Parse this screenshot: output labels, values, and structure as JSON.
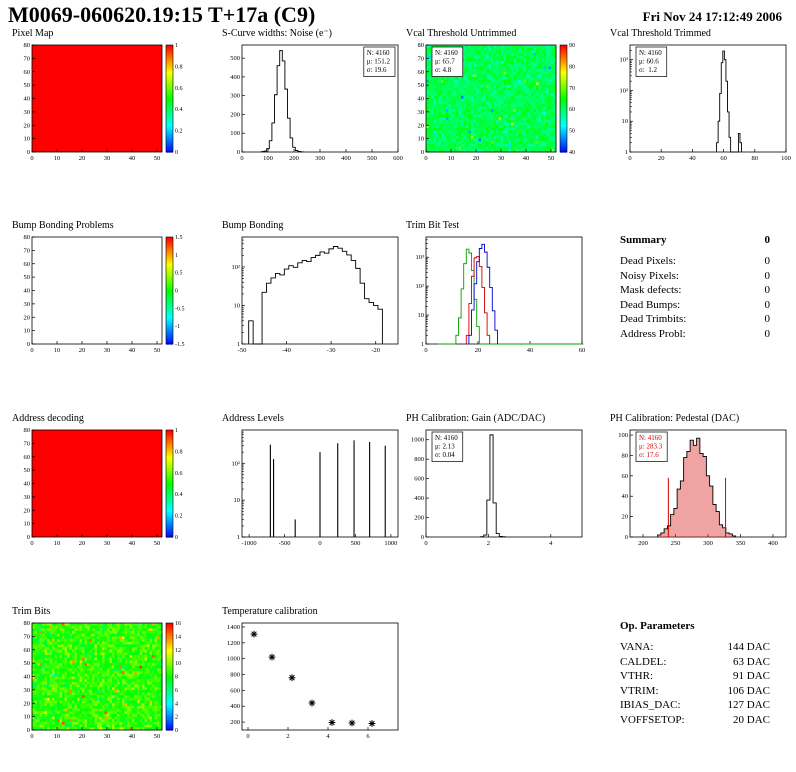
{
  "header": {
    "title": "M0069-060620.19:15 T+17a (C9)",
    "timestamp": "Fri Nov 24 17:12:49 2006"
  },
  "summary": {
    "title": "Summary",
    "value": "0",
    "rows": [
      {
        "label": "Dead Pixels:",
        "value": "0"
      },
      {
        "label": "Noisy Pixels:",
        "value": "0"
      },
      {
        "label": "Mask defects:",
        "value": "0"
      },
      {
        "label": "Dead Bumps:",
        "value": "0"
      },
      {
        "label": "Dead Trimbits:",
        "value": "0"
      },
      {
        "label": "Address Probl:",
        "value": "0"
      }
    ]
  },
  "op_parameters": {
    "title": "Op. Parameters",
    "rows": [
      {
        "label": "VANA:",
        "value": "144 DAC"
      },
      {
        "label": "CALDEL:",
        "value": "63 DAC"
      },
      {
        "label": "VTHR:",
        "value": "91 DAC"
      },
      {
        "label": "VTRIM:",
        "value": "106 DAC"
      },
      {
        "label": "IBIAS_DAC:",
        "value": "127 DAC"
      },
      {
        "label": "VOFFSETOP:",
        "value": "20 DAC"
      }
    ]
  },
  "chart_data": [
    {
      "id": "pixel-map",
      "title": "Pixel Map",
      "type": "heatmap",
      "fill": "solid",
      "color": "#ff0000",
      "x": {
        "min": 0,
        "max": 52,
        "ticks": [
          0,
          10,
          20,
          30,
          40,
          50
        ]
      },
      "y": {
        "min": 0,
        "max": 80,
        "ticks": [
          0,
          10,
          20,
          30,
          40,
          50,
          60,
          70,
          80
        ]
      },
      "colorbar": {
        "labels": [
          "1",
          "0.8",
          "0.6",
          "0.4",
          "0.2",
          "0"
        ]
      }
    },
    {
      "id": "scurve",
      "title": "S-Curve widths: Noise (e⁻)",
      "type": "hist",
      "binw": 10,
      "color": "#000000",
      "x": {
        "min": 0,
        "max": 600,
        "ticks": [
          0,
          100,
          200,
          300,
          400,
          500,
          600
        ]
      },
      "y": {
        "min": 0,
        "max": 570,
        "ticks": [
          0,
          100,
          200,
          300,
          400,
          500
        ]
      },
      "stats": {
        "pos": "tr",
        "lines": [
          "N: 4160",
          "μ: 151.2",
          "σ: 19.6"
        ]
      },
      "bins": [
        [
          80,
          2
        ],
        [
          90,
          5
        ],
        [
          100,
          18
        ],
        [
          110,
          60
        ],
        [
          120,
          155
        ],
        [
          130,
          305
        ],
        [
          140,
          460
        ],
        [
          150,
          540
        ],
        [
          160,
          485
        ],
        [
          170,
          335
        ],
        [
          180,
          180
        ],
        [
          190,
          75
        ],
        [
          200,
          25
        ],
        [
          210,
          8
        ],
        [
          220,
          3
        ],
        [
          230,
          1
        ]
      ]
    },
    {
      "id": "vcal-untrimmed",
      "title": "Vcal Threshold Untrimmed",
      "type": "heatmap",
      "fill": "noise",
      "noise": {
        "base": 0.42,
        "spread": 0.1,
        "outlier_prob": 0.03,
        "outlier_range": [
          0.1,
          0.75
        ],
        "seed": 7
      },
      "x": {
        "min": 0,
        "max": 52,
        "ticks": [
          0,
          10,
          20,
          30,
          40,
          50
        ]
      },
      "y": {
        "min": 0,
        "max": 80,
        "ticks": [
          0,
          10,
          20,
          30,
          40,
          50,
          60,
          70,
          80
        ]
      },
      "colorbar": {
        "labels": [
          "90",
          "80",
          "70",
          "60",
          "50",
          "40"
        ]
      },
      "stats": {
        "pos": "tl",
        "lines": [
          "N: 4160",
          "μ: 65.7",
          "σ: 4.8"
        ]
      }
    },
    {
      "id": "vcal-trimmed",
      "title": "Vcal Threshold Trimmed",
      "type": "hist",
      "binw": 1,
      "color": "#000000",
      "x": {
        "min": 0,
        "max": 100,
        "ticks": [
          0,
          20,
          40,
          60,
          80,
          100
        ]
      },
      "y": {
        "min": 1,
        "max": 3000,
        "log": true,
        "ticks": [
          1,
          10,
          100,
          1000
        ]
      },
      "stats": {
        "pos": "tl",
        "lines": [
          "N: 4160",
          "μ: 60.6",
          "σ:  1.2"
        ]
      },
      "bins": [
        [
          56,
          2
        ],
        [
          57,
          10
        ],
        [
          58,
          80
        ],
        [
          59,
          800
        ],
        [
          60,
          1900
        ],
        [
          61,
          1000
        ],
        [
          62,
          200
        ],
        [
          63,
          20
        ],
        [
          64,
          3
        ],
        [
          70,
          4
        ],
        [
          71,
          2
        ]
      ]
    },
    {
      "id": "bump-problems",
      "title": "Bump Bonding Problems",
      "type": "heatmap",
      "fill": "none",
      "x": {
        "min": 0,
        "max": 52,
        "ticks": [
          0,
          10,
          20,
          30,
          40,
          50
        ]
      },
      "y": {
        "min": 0,
        "max": 80,
        "ticks": [
          0,
          10,
          20,
          30,
          40,
          50,
          60,
          70,
          80
        ]
      },
      "colorbar": {
        "labels": [
          "1.5",
          "1",
          "0.5",
          "0",
          "-0.5",
          "-1",
          "-1.5"
        ]
      }
    },
    {
      "id": "bump-bonding",
      "title": "Bump Bonding",
      "type": "hist",
      "binw": 1,
      "color": "#000000",
      "x": {
        "min": -50,
        "max": -15,
        "ticks": [
          -50,
          -40,
          -30,
          -20
        ]
      },
      "y": {
        "min": 1,
        "max": 600,
        "log": true,
        "ticks": [
          1,
          10,
          100
        ]
      },
      "bins": [
        [
          -48,
          4
        ],
        [
          -45,
          22
        ],
        [
          -44,
          38
        ],
        [
          -43,
          52
        ],
        [
          -42,
          68
        ],
        [
          -41,
          62
        ],
        [
          -40,
          88
        ],
        [
          -39,
          108
        ],
        [
          -38,
          98
        ],
        [
          -37,
          128
        ],
        [
          -36,
          148
        ],
        [
          -35,
          138
        ],
        [
          -34,
          175
        ],
        [
          -33,
          200
        ],
        [
          -32,
          245
        ],
        [
          -31,
          228
        ],
        [
          -30,
          295
        ],
        [
          -29,
          340
        ],
        [
          -28,
          308
        ],
        [
          -27,
          255
        ],
        [
          -26,
          205
        ],
        [
          -25,
          148
        ],
        [
          -24,
          92
        ],
        [
          -23,
          38
        ],
        [
          -22,
          15
        ],
        [
          -21,
          12
        ],
        [
          -20,
          10
        ],
        [
          -19,
          8
        ]
      ]
    },
    {
      "id": "trimbit-test",
      "title": "Trim Bit Test",
      "type": "multihist",
      "x": {
        "min": 0,
        "max": 60,
        "ticks": [
          0,
          20,
          40,
          60
        ]
      },
      "y": {
        "min": 1,
        "max": 5000,
        "log": true,
        "ticks": [
          1,
          10,
          100,
          1000
        ]
      },
      "series": [
        {
          "name": "trimbit-green",
          "color": "#00a000",
          "binw": 1,
          "bins": [
            [
              5,
              1
            ],
            [
              6,
              1
            ],
            [
              7,
              1
            ],
            [
              8,
              1
            ],
            [
              9,
              1
            ],
            [
              10,
              1
            ],
            [
              11,
              1
            ],
            [
              12,
              2
            ],
            [
              13,
              8
            ],
            [
              14,
              80
            ],
            [
              15,
              600
            ],
            [
              16,
              1900
            ],
            [
              17,
              1400
            ],
            [
              18,
              350
            ],
            [
              19,
              35
            ],
            [
              20,
              4
            ]
          ],
          "baseline": {
            "from": 21,
            "to": 60,
            "value": 1
          }
        },
        {
          "name": "trimbit-red",
          "color": "#cc0000",
          "binw": 1,
          "bins": [
            [
              16,
              2
            ],
            [
              17,
              25
            ],
            [
              18,
              220
            ],
            [
              19,
              950
            ],
            [
              20,
              1050
            ],
            [
              21,
              480
            ],
            [
              22,
              90
            ],
            [
              23,
              12
            ],
            [
              24,
              2
            ]
          ]
        },
        {
          "name": "trimbit-blue",
          "color": "#0000cc",
          "binw": 1,
          "bins": [
            [
              17,
              2
            ],
            [
              18,
              15
            ],
            [
              19,
              120
            ],
            [
              20,
              700
            ],
            [
              21,
              2000
            ],
            [
              22,
              2800
            ],
            [
              23,
              1500
            ],
            [
              24,
              450
            ],
            [
              25,
              90
            ],
            [
              26,
              14
            ],
            [
              27,
              3
            ]
          ]
        }
      ]
    },
    {
      "id": "address-decoding",
      "title": "Address decoding",
      "type": "heatmap",
      "fill": "solid",
      "color": "#ff0000",
      "x": {
        "min": 0,
        "max": 52,
        "ticks": [
          0,
          10,
          20,
          30,
          40,
          50
        ]
      },
      "y": {
        "min": 0,
        "max": 80,
        "ticks": [
          0,
          10,
          20,
          30,
          40,
          50,
          60,
          70,
          80
        ]
      },
      "colorbar": {
        "labels": [
          "1",
          "0.8",
          "0.6",
          "0.4",
          "0.2",
          "0"
        ]
      }
    },
    {
      "id": "address-levels",
      "title": "Address Levels",
      "type": "spikes",
      "color": "#000000",
      "x": {
        "min": -1100,
        "max": 1100,
        "ticks": [
          -1000,
          -500,
          0,
          500,
          1000
        ]
      },
      "y": {
        "min": 1,
        "max": 800,
        "log": true,
        "ticks": [
          1,
          10,
          100
        ]
      },
      "spikes": [
        [
          -700,
          320
        ],
        [
          -655,
          130
        ],
        [
          -350,
          3
        ],
        [
          0,
          200
        ],
        [
          250,
          350
        ],
        [
          480,
          420
        ],
        [
          700,
          380
        ],
        [
          920,
          300
        ]
      ]
    },
    {
      "id": "ph-gain",
      "title": "PH Calibration: Gain (ADC/DAC)",
      "type": "hist",
      "binw": 0.1,
      "color": "#000000",
      "x": {
        "min": 0,
        "max": 5,
        "ticks": [
          0,
          2,
          4
        ]
      },
      "y": {
        "min": 0,
        "max": 1100,
        "ticks": [
          0,
          200,
          400,
          600,
          800,
          1000
        ]
      },
      "stats": {
        "pos": "tl",
        "lines": [
          "N: 4160",
          "μ: 2.13",
          "σ: 0.04"
        ]
      },
      "bins": [
        [
          1.8,
          3
        ],
        [
          1.9,
          20
        ],
        [
          2.0,
          380
        ],
        [
          2.1,
          1050
        ],
        [
          2.2,
          350
        ],
        [
          2.3,
          35
        ],
        [
          2.4,
          6
        ],
        [
          2.5,
          2
        ]
      ]
    },
    {
      "id": "ph-pedestal",
      "title": "PH Calibration: Pedestal (DAC)",
      "type": "hist",
      "binw": 5,
      "color": "#000000",
      "fill_color": "rgba(220,50,50,0.45)",
      "x": {
        "min": 180,
        "max": 420,
        "ticks": [
          200,
          250,
          300,
          350,
          400
        ]
      },
      "y": {
        "min": 0,
        "max": 105,
        "ticks": [
          0,
          20,
          40,
          60,
          80,
          100
        ]
      },
      "stats": {
        "pos": "tl",
        "color": "#cc0000",
        "lines": [
          "N: 4160",
          "μ: 283.3",
          "σ: 17.6"
        ]
      },
      "vlines": [
        {
          "x": 239,
          "h": 58,
          "color": "#d00000"
        },
        {
          "x": 327,
          "h": 58,
          "color": "#d00000"
        }
      ],
      "bins": [
        [
          225,
          2
        ],
        [
          230,
          4
        ],
        [
          235,
          8
        ],
        [
          240,
          11
        ],
        [
          245,
          22
        ],
        [
          250,
          28
        ],
        [
          255,
          47
        ],
        [
          260,
          55
        ],
        [
          265,
          78
        ],
        [
          270,
          84
        ],
        [
          275,
          95
        ],
        [
          280,
          90
        ],
        [
          285,
          97
        ],
        [
          290,
          82
        ],
        [
          295,
          79
        ],
        [
          300,
          60
        ],
        [
          305,
          50
        ],
        [
          310,
          32
        ],
        [
          315,
          25
        ],
        [
          320,
          12
        ],
        [
          325,
          9
        ],
        [
          330,
          4
        ],
        [
          335,
          3
        ],
        [
          340,
          1
        ]
      ]
    },
    {
      "id": "trim-bits",
      "title": "Trim Bits",
      "type": "heatmap",
      "fill": "noise",
      "noise": {
        "base": 0.54,
        "spread": 0.13,
        "outlier_prob": 0.05,
        "outlier_range": [
          0.3,
          0.95
        ],
        "seed": 11
      },
      "x": {
        "min": 0,
        "max": 52,
        "ticks": [
          0,
          10,
          20,
          30,
          40,
          50
        ]
      },
      "y": {
        "min": 0,
        "max": 80,
        "ticks": [
          0,
          10,
          20,
          30,
          40,
          50,
          60,
          70,
          80
        ]
      },
      "colorbar": {
        "labels": [
          "16",
          "14",
          "12",
          "10",
          "8",
          "6",
          "4",
          "2",
          "0"
        ]
      }
    },
    {
      "id": "temperature",
      "title": "Temperature calibration",
      "type": "scatter",
      "color": "#000000",
      "x": {
        "min": -0.3,
        "max": 7.5,
        "ticks": [
          0,
          2,
          4,
          6
        ]
      },
      "y": {
        "min": 100,
        "max": 1450,
        "ticks": [
          200,
          400,
          600,
          800,
          1000,
          1200,
          1400
        ]
      },
      "points": [
        [
          0.3,
          1310
        ],
        [
          1.2,
          1020
        ],
        [
          2.2,
          760
        ],
        [
          3.2,
          440
        ],
        [
          4.2,
          195
        ],
        [
          5.2,
          188
        ],
        [
          6.2,
          182
        ]
      ]
    }
  ]
}
